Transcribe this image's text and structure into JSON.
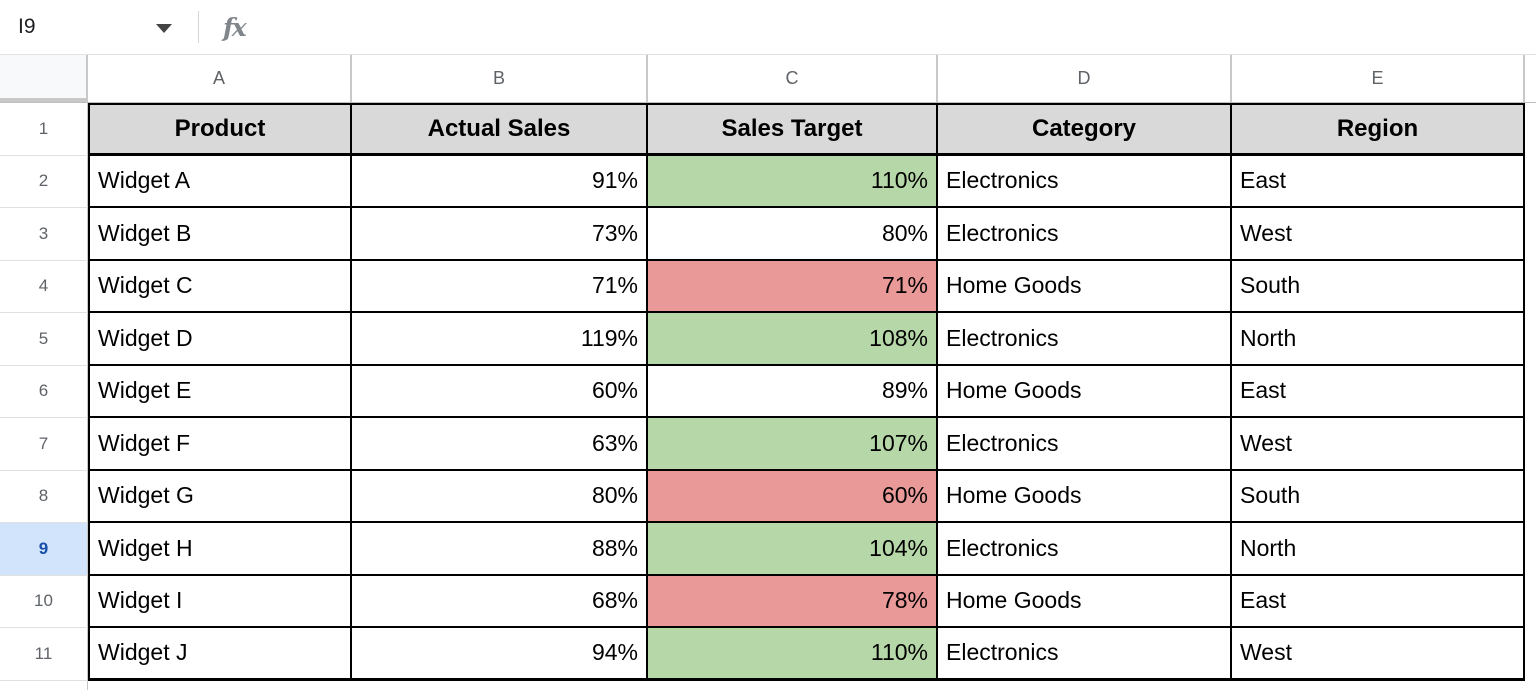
{
  "toolbar": {
    "name_box": "I9",
    "formula_bar_value": "",
    "fx_label": "fx"
  },
  "grid": {
    "column_letters": [
      "A",
      "B",
      "C",
      "D",
      "E"
    ],
    "row_numbers": [
      "1",
      "2",
      "3",
      "4",
      "5",
      "6",
      "7",
      "8",
      "9",
      "10",
      "11"
    ],
    "selected_row": "9",
    "selected_cell": "I9"
  },
  "table": {
    "headers": [
      "Product",
      "Actual Sales",
      "Sales Target",
      "Category",
      "Region"
    ],
    "rows": [
      {
        "product": "Widget A",
        "actual": "91%",
        "target": "110%",
        "target_fill": "green",
        "category": "Electronics",
        "region": "East"
      },
      {
        "product": "Widget B",
        "actual": "73%",
        "target": "80%",
        "target_fill": "none",
        "category": "Electronics",
        "region": "West"
      },
      {
        "product": "Widget C",
        "actual": "71%",
        "target": "71%",
        "target_fill": "red",
        "category": "Home Goods",
        "region": "South"
      },
      {
        "product": "Widget D",
        "actual": "119%",
        "target": "108%",
        "target_fill": "green",
        "category": "Electronics",
        "region": "North"
      },
      {
        "product": "Widget E",
        "actual": "60%",
        "target": "89%",
        "target_fill": "none",
        "category": "Home Goods",
        "region": "East"
      },
      {
        "product": "Widget F",
        "actual": "63%",
        "target": "107%",
        "target_fill": "green",
        "category": "Electronics",
        "region": "West"
      },
      {
        "product": "Widget G",
        "actual": "80%",
        "target": "60%",
        "target_fill": "red",
        "category": "Home Goods",
        "region": "South"
      },
      {
        "product": "Widget H",
        "actual": "88%",
        "target": "104%",
        "target_fill": "green",
        "category": "Electronics",
        "region": "North"
      },
      {
        "product": "Widget I",
        "actual": "68%",
        "target": "78%",
        "target_fill": "red",
        "category": "Home Goods",
        "region": "East"
      },
      {
        "product": "Widget J",
        "actual": "94%",
        "target": "110%",
        "target_fill": "green",
        "category": "Electronics",
        "region": "West"
      }
    ]
  },
  "colors": {
    "fill_green": "#b6d7a8",
    "fill_red": "#ea9999",
    "header_fill": "#d9d9d9",
    "selected_row_fill": "#d2e3fc",
    "selected_row_text": "#174ea6",
    "grid_header_text": "#5f6368",
    "table_border": "#000000"
  }
}
